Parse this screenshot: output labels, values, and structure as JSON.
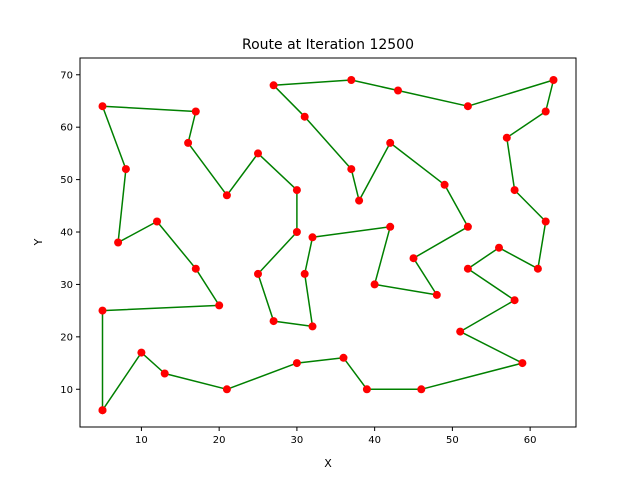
{
  "chart_data": {
    "type": "line",
    "title": "Route at Iteration 12500",
    "xlabel": "X",
    "ylabel": "Y",
    "xlim": [
      2.1,
      65.9
    ],
    "ylim": [
      2.8,
      73.2
    ],
    "xticks": [
      10,
      20,
      30,
      40,
      50,
      60
    ],
    "yticks": [
      10,
      20,
      30,
      40,
      50,
      60,
      70
    ],
    "grid": false,
    "line_color": "#008000",
    "marker_color": "#ff0000",
    "route": [
      [
        5,
        6
      ],
      [
        10,
        17
      ],
      [
        13,
        13
      ],
      [
        21,
        10
      ],
      [
        30,
        15
      ],
      [
        36,
        16
      ],
      [
        39,
        10
      ],
      [
        46,
        10
      ],
      [
        59,
        15
      ],
      [
        51,
        21
      ],
      [
        58,
        27
      ],
      [
        52,
        33
      ],
      [
        56,
        37
      ],
      [
        61,
        33
      ],
      [
        62,
        42
      ],
      [
        58,
        48
      ],
      [
        57,
        58
      ],
      [
        62,
        63
      ],
      [
        63,
        69
      ],
      [
        52,
        64
      ],
      [
        43,
        67
      ],
      [
        37,
        69
      ],
      [
        27,
        68
      ],
      [
        31,
        62
      ],
      [
        37,
        52
      ],
      [
        38,
        46
      ],
      [
        42,
        57
      ],
      [
        49,
        49
      ],
      [
        52,
        41
      ],
      [
        45,
        35
      ],
      [
        48,
        28
      ],
      [
        40,
        30
      ],
      [
        42,
        41
      ],
      [
        32,
        39
      ],
      [
        31,
        32
      ],
      [
        32,
        22
      ],
      [
        27,
        23
      ],
      [
        25,
        32
      ],
      [
        30,
        40
      ],
      [
        30,
        48
      ],
      [
        25,
        55
      ],
      [
        21,
        47
      ],
      [
        16,
        57
      ],
      [
        17,
        63
      ],
      [
        5,
        64
      ],
      [
        8,
        52
      ],
      [
        7,
        38
      ],
      [
        12,
        42
      ],
      [
        17,
        33
      ],
      [
        20,
        26
      ],
      [
        5,
        25
      ],
      [
        5,
        6
      ]
    ]
  }
}
